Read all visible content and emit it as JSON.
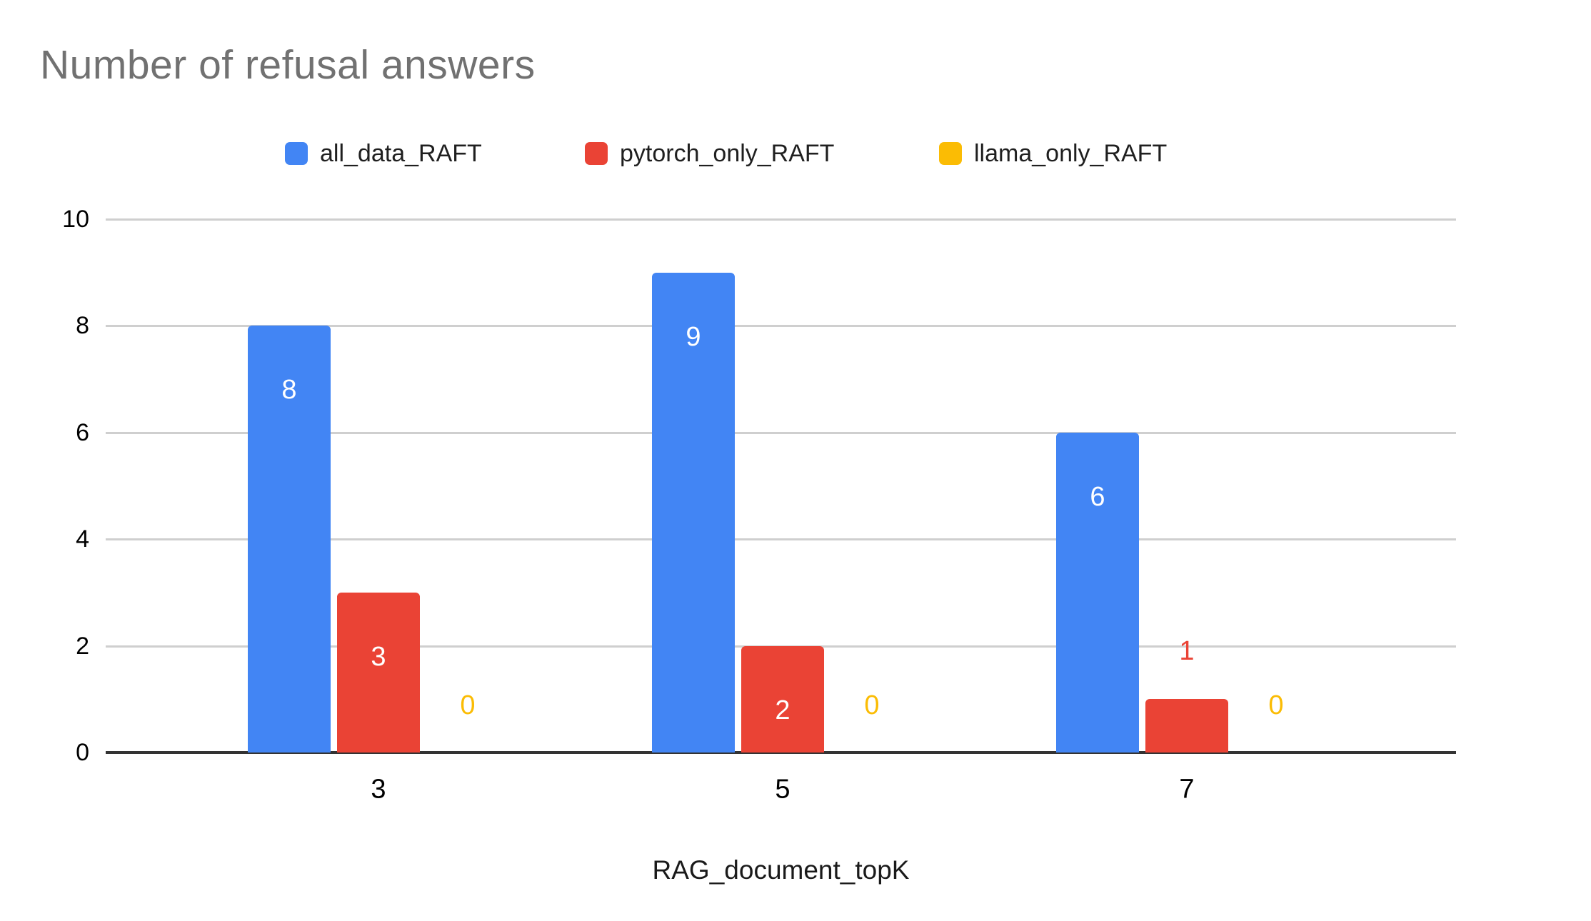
{
  "chart_data": {
    "type": "bar",
    "title": "Number of refusal answers",
    "categories": [
      "3",
      "5",
      "7"
    ],
    "series": [
      {
        "name": "all_data_RAFT",
        "color": "#4285F4",
        "values": [
          8,
          9,
          6
        ]
      },
      {
        "name": "pytorch_only_RAFT",
        "color": "#EA4335",
        "values": [
          3,
          2,
          1
        ]
      },
      {
        "name": "llama_only_RAFT",
        "color": "#FBBC04",
        "values": [
          0,
          0,
          0
        ]
      }
    ],
    "xlabel": "RAG_document_topK",
    "ylabel": "",
    "ylim": [
      0,
      10
    ],
    "ytick_step": 2,
    "ytick_labels": [
      "0",
      "2",
      "4",
      "6",
      "8",
      "10"
    ],
    "grid": true,
    "legend_position": "top"
  },
  "colors": {
    "title_text": "#717171",
    "legend_text": "#1f1f1f",
    "axis_text": "#000000",
    "gridline": "#cfcfcf",
    "baseline": "#333333",
    "inside_bar_label": "#ffffff",
    "background": "#ffffff"
  }
}
